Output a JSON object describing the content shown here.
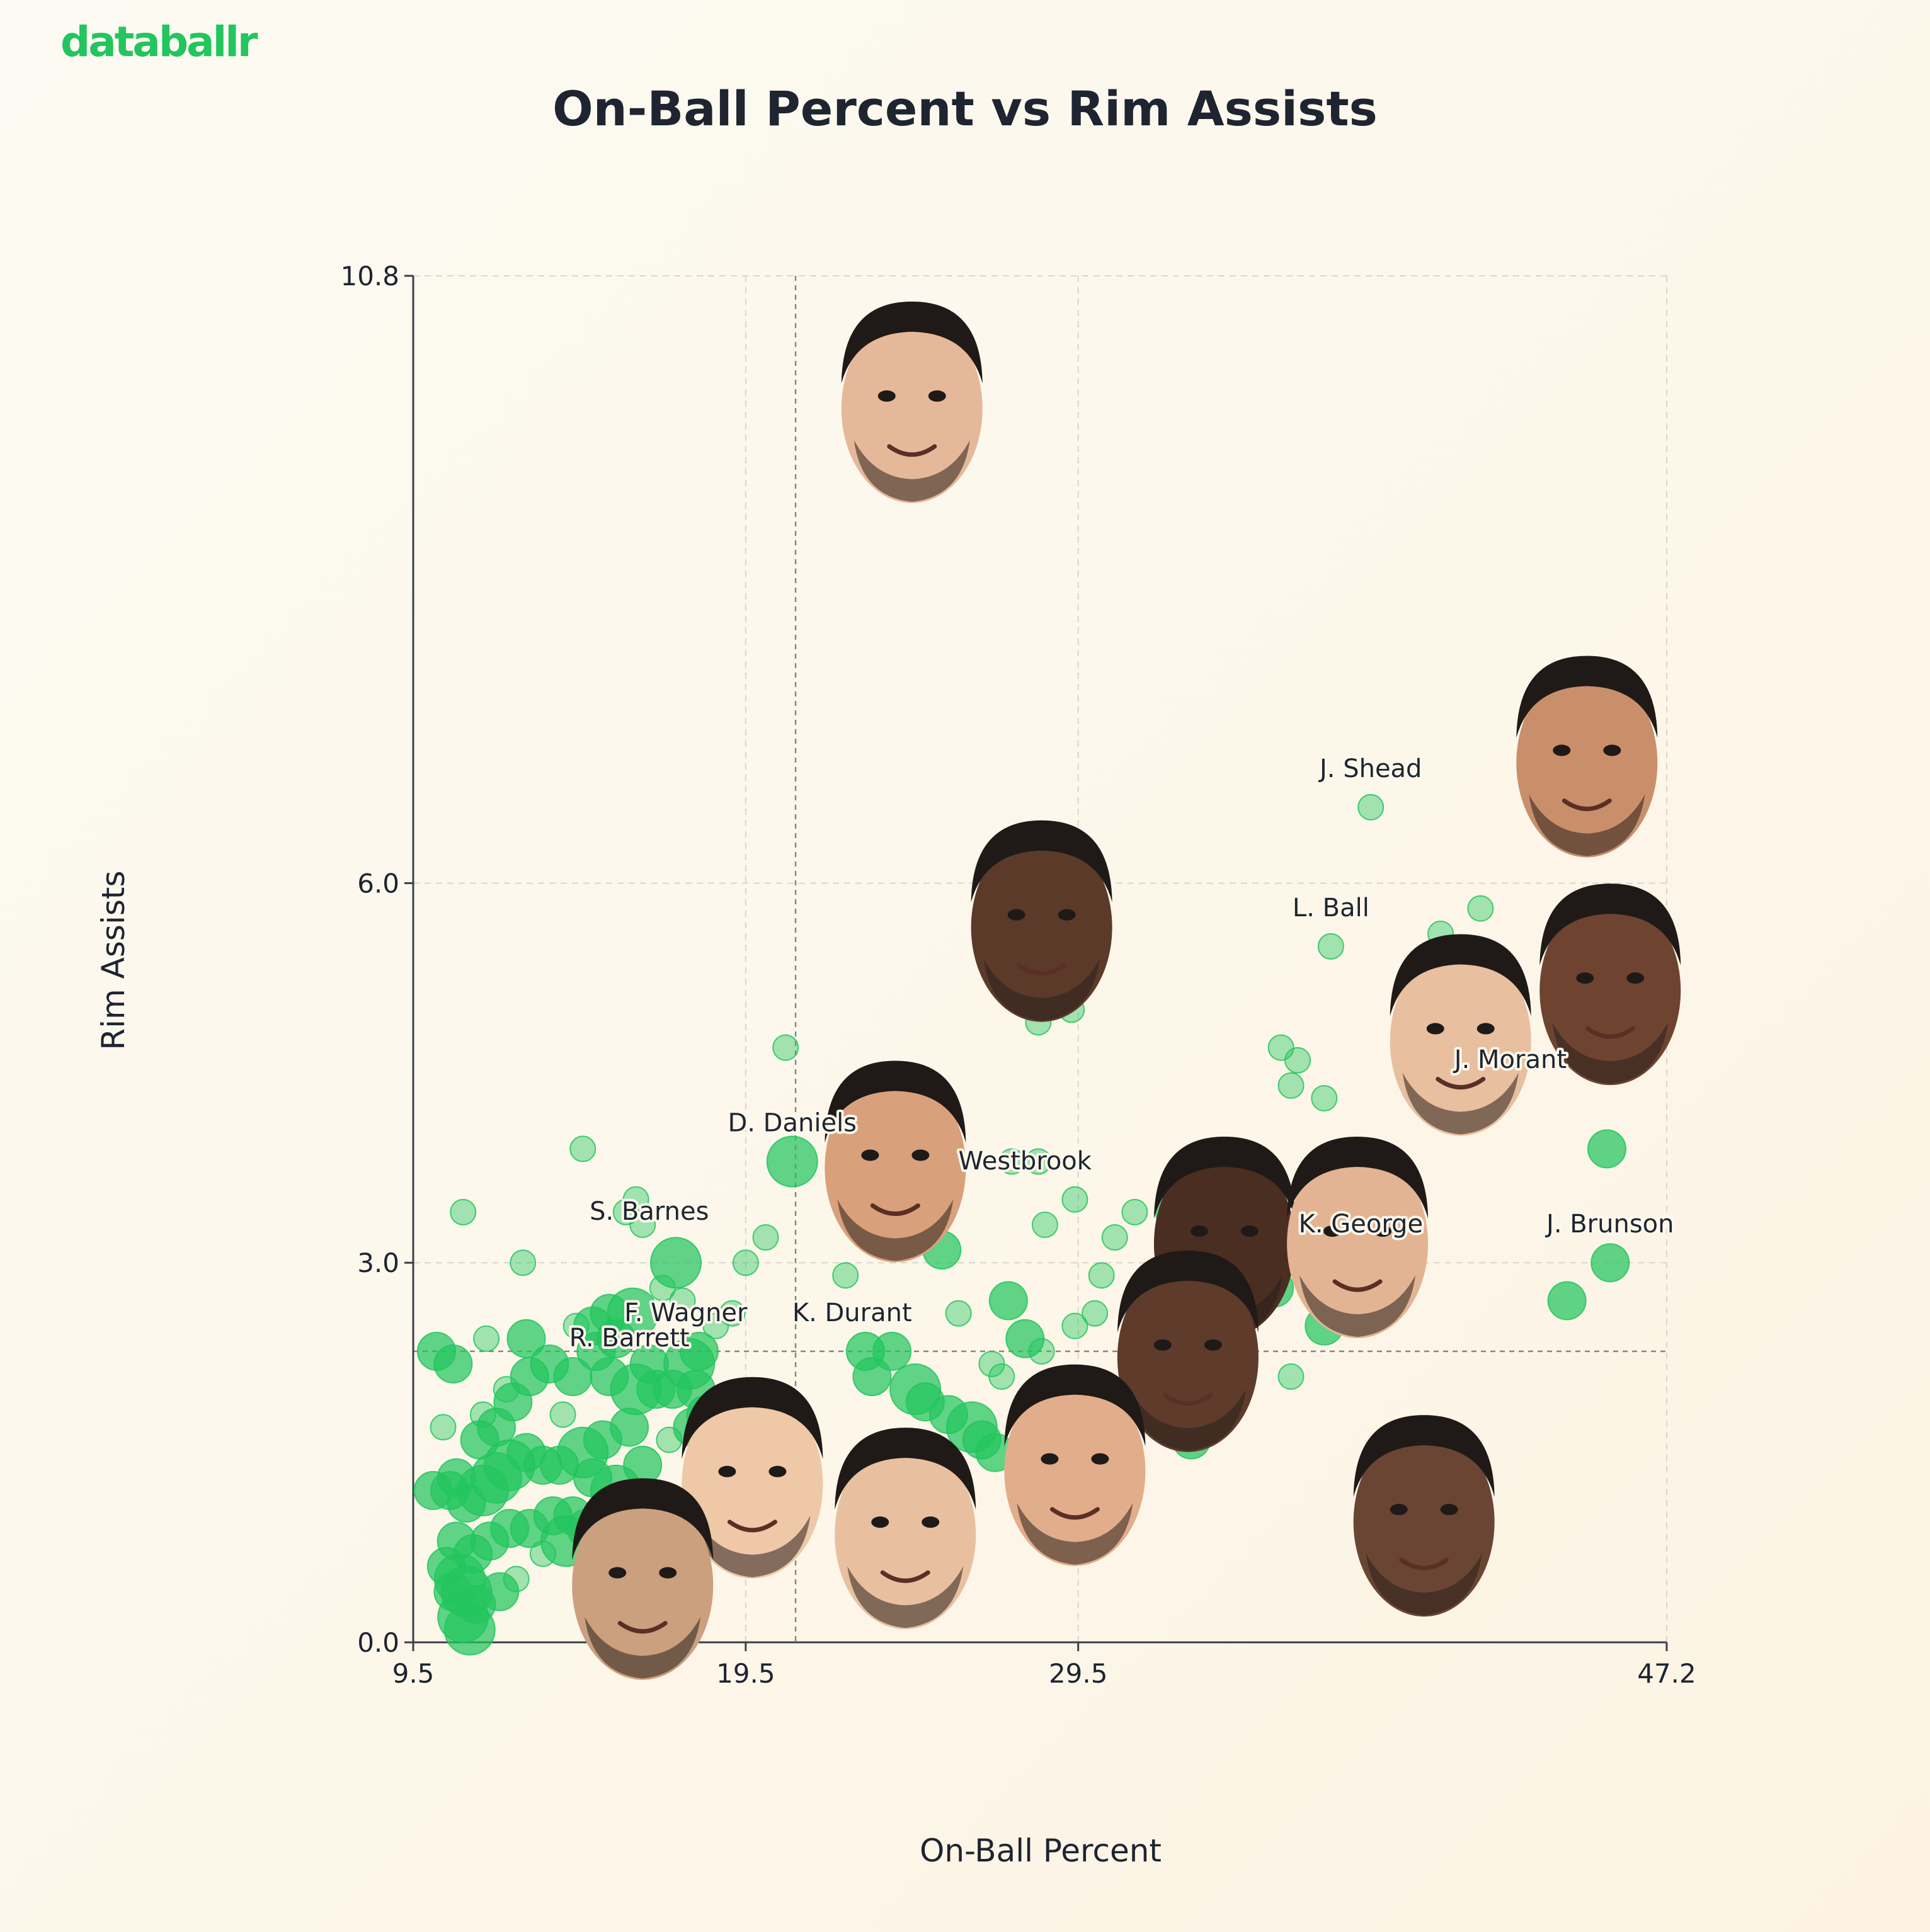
{
  "brand": {
    "logo_text": "databallr",
    "color": "#22c55e"
  },
  "chart_data": {
    "type": "scatter",
    "title": "On-Ball Percent vs Rim Assists",
    "xlabel": "On-Ball Percent",
    "ylabel": "Rim Assists",
    "xlim": [
      9.5,
      47.2
    ],
    "ylim": [
      0.0,
      10.8
    ],
    "x_ticks": [
      9.5,
      19.5,
      29.5,
      47.2
    ],
    "y_ticks": [
      0.0,
      3.0,
      6.0,
      10.8
    ],
    "grid": true,
    "reference_lines": {
      "x": 21.0,
      "y": 2.3
    },
    "point_color": "#22c55e",
    "highlighted_players": [
      {
        "label": "",
        "x": 24.5,
        "y": 9.8,
        "face": "headshot"
      },
      {
        "label": "",
        "x": 28.4,
        "y": 5.7,
        "face": "headshot"
      },
      {
        "label": "",
        "x": 44.8,
        "y": 7.0,
        "face": "headshot"
      },
      {
        "label": "",
        "x": 45.5,
        "y": 5.2,
        "face": "headshot"
      },
      {
        "label": "",
        "x": 41.0,
        "y": 4.8,
        "face": "headshot"
      },
      {
        "label": "",
        "x": 33.9,
        "y": 3.2,
        "face": "headshot"
      },
      {
        "label": "",
        "x": 37.9,
        "y": 3.2,
        "face": "headshot"
      },
      {
        "label": "",
        "x": 24.0,
        "y": 3.8,
        "face": "headshot"
      },
      {
        "label": "",
        "x": 32.8,
        "y": 2.3,
        "face": "headshot"
      },
      {
        "label": "",
        "x": 29.4,
        "y": 1.4,
        "face": "headshot"
      },
      {
        "label": "",
        "x": 39.9,
        "y": 1.0,
        "face": "headshot"
      },
      {
        "label": "",
        "x": 19.7,
        "y": 1.3,
        "face": "headshot"
      },
      {
        "label": "",
        "x": 24.3,
        "y": 0.9,
        "face": "headshot"
      },
      {
        "label": "",
        "x": 16.4,
        "y": 0.5,
        "face": "headshot"
      }
    ],
    "labeled_points": [
      {
        "label": "J. Shead",
        "x": 38.3,
        "y": 6.6
      },
      {
        "label": "L. Ball",
        "x": 37.1,
        "y": 5.5
      },
      {
        "label": "J. Morant",
        "x": 42.5,
        "y": 4.3
      },
      {
        "label": "J. Brunson",
        "x": 45.5,
        "y": 3.0
      },
      {
        "label": "K. George",
        "x": 38.0,
        "y": 3.0
      },
      {
        "label": "Westbrook",
        "x": 27.9,
        "y": 3.5
      },
      {
        "label": "D. Daniels",
        "x": 20.9,
        "y": 3.8
      },
      {
        "label": "S. Barnes",
        "x": 16.6,
        "y": 3.1
      },
      {
        "label": "F. Wagner",
        "x": 17.7,
        "y": 2.3
      },
      {
        "label": "R. Barrett",
        "x": 16.0,
        "y": 2.1
      },
      {
        "label": "K. Durant",
        "x": 22.7,
        "y": 2.3
      }
    ],
    "points": [
      [
        38.3,
        6.6,
        1
      ],
      [
        37.1,
        5.5,
        1
      ],
      [
        41.6,
        5.8,
        1
      ],
      [
        40.4,
        5.6,
        1
      ],
      [
        28.3,
        4.9,
        1
      ],
      [
        29.3,
        5.0,
        1
      ],
      [
        20.7,
        4.7,
        1
      ],
      [
        35.6,
        4.7,
        1
      ],
      [
        36.1,
        4.6,
        1
      ],
      [
        35.9,
        4.4,
        1
      ],
      [
        36.9,
        4.3,
        1
      ],
      [
        45.4,
        3.9,
        2
      ],
      [
        20.9,
        3.8,
        3
      ],
      [
        14.6,
        3.9,
        1
      ],
      [
        27.5,
        3.8,
        1
      ],
      [
        28.3,
        3.8,
        1
      ],
      [
        28.5,
        3.3,
        1
      ],
      [
        29.4,
        3.5,
        1
      ],
      [
        32.4,
        3.4,
        2
      ],
      [
        33.5,
        3.2,
        1
      ],
      [
        38.3,
        3.3,
        2
      ],
      [
        37.9,
        3.0,
        2
      ],
      [
        45.5,
        3.0,
        2
      ],
      [
        44.2,
        2.7,
        2
      ],
      [
        36.9,
        2.5,
        2
      ],
      [
        35.4,
        2.8,
        2
      ],
      [
        35.9,
        2.1,
        1
      ],
      [
        32.9,
        1.6,
        2
      ],
      [
        31.2,
        3.4,
        1
      ],
      [
        30.6,
        3.2,
        1
      ],
      [
        30.2,
        2.9,
        1
      ],
      [
        30.0,
        2.6,
        1
      ],
      [
        29.4,
        2.5,
        1
      ],
      [
        28.4,
        2.3,
        1
      ],
      [
        27.4,
        2.7,
        2
      ],
      [
        27.9,
        2.4,
        2
      ],
      [
        25.4,
        3.1,
        2
      ],
      [
        24.9,
        3.3,
        2
      ],
      [
        22.5,
        2.9,
        1
      ],
      [
        23.1,
        2.3,
        2
      ],
      [
        23.9,
        2.3,
        2
      ],
      [
        23.3,
        2.1,
        2
      ],
      [
        24.6,
        2.0,
        3
      ],
      [
        24.9,
        1.9,
        2
      ],
      [
        25.6,
        1.8,
        2
      ],
      [
        26.3,
        1.7,
        3
      ],
      [
        26.6,
        1.6,
        2
      ],
      [
        27.0,
        1.5,
        2
      ],
      [
        27.2,
        2.1,
        1
      ],
      [
        26.9,
        2.2,
        1
      ],
      [
        25.9,
        2.6,
        1
      ],
      [
        20.1,
        3.2,
        1
      ],
      [
        19.5,
        3.0,
        1
      ],
      [
        16.4,
        3.3,
        1
      ],
      [
        11.0,
        3.4,
        1
      ],
      [
        12.8,
        3.0,
        1
      ],
      [
        17.4,
        3.0,
        3
      ],
      [
        15.9,
        3.4,
        1
      ],
      [
        16.2,
        3.5,
        1
      ],
      [
        14.4,
        2.5,
        1
      ],
      [
        14.9,
        2.5,
        2
      ],
      [
        15.4,
        2.6,
        2
      ],
      [
        16.1,
        2.6,
        3
      ],
      [
        15.6,
        2.4,
        2
      ],
      [
        16.6,
        2.2,
        2
      ],
      [
        17.3,
        2.0,
        2
      ],
      [
        17.8,
        2.2,
        3
      ],
      [
        18.1,
        2.3,
        2
      ],
      [
        18.6,
        2.5,
        1
      ],
      [
        17.6,
        2.7,
        1
      ],
      [
        17.0,
        2.8,
        1
      ],
      [
        19.1,
        2.6,
        1
      ],
      [
        18.0,
        2.0,
        2
      ],
      [
        18.3,
        1.8,
        2
      ],
      [
        15.0,
        2.3,
        2
      ],
      [
        14.3,
        2.1,
        2
      ],
      [
        15.4,
        2.1,
        2
      ],
      [
        16.2,
        2.0,
        3
      ],
      [
        16.8,
        2.0,
        2
      ],
      [
        16.0,
        1.7,
        2
      ],
      [
        15.2,
        1.6,
        2
      ],
      [
        14.6,
        1.5,
        3
      ],
      [
        13.9,
        1.4,
        2
      ],
      [
        13.4,
        1.4,
        2
      ],
      [
        12.9,
        1.5,
        2
      ],
      [
        12.4,
        1.4,
        3
      ],
      [
        12.0,
        1.3,
        3
      ],
      [
        11.6,
        1.2,
        3
      ],
      [
        11.1,
        1.1,
        2
      ],
      [
        10.6,
        1.2,
        2
      ],
      [
        10.1,
        1.2,
        2
      ],
      [
        10.8,
        1.3,
        2
      ],
      [
        11.5,
        1.6,
        2
      ],
      [
        12.0,
        1.7,
        2
      ],
      [
        12.5,
        1.9,
        2
      ],
      [
        13.0,
        2.1,
        2
      ],
      [
        13.6,
        2.2,
        2
      ],
      [
        14.0,
        1.8,
        1
      ],
      [
        15.6,
        1.2,
        3
      ],
      [
        14.9,
        1.3,
        2
      ],
      [
        14.3,
        1.0,
        2
      ],
      [
        13.7,
        1.0,
        2
      ],
      [
        13.0,
        0.9,
        2
      ],
      [
        12.4,
        0.9,
        2
      ],
      [
        11.8,
        0.8,
        2
      ],
      [
        11.3,
        0.7,
        2
      ],
      [
        10.8,
        0.8,
        2
      ],
      [
        10.5,
        0.6,
        2
      ],
      [
        10.9,
        0.5,
        3
      ],
      [
        11.1,
        0.4,
        3
      ],
      [
        11.4,
        0.3,
        2
      ],
      [
        10.7,
        0.4,
        2
      ],
      [
        11.0,
        0.2,
        3
      ],
      [
        11.2,
        0.1,
        3
      ],
      [
        12.1,
        0.4,
        2
      ],
      [
        12.6,
        0.5,
        1
      ],
      [
        13.4,
        0.7,
        1
      ],
      [
        14.1,
        0.8,
        3
      ],
      [
        14.7,
        0.9,
        2
      ],
      [
        15.3,
        0.4,
        1
      ],
      [
        10.2,
        2.3,
        2
      ],
      [
        10.7,
        2.2,
        2
      ],
      [
        11.7,
        2.4,
        1
      ],
      [
        12.9,
        2.4,
        2
      ],
      [
        17.9,
        1.7,
        2
      ],
      [
        17.2,
        1.6,
        1
      ],
      [
        16.4,
        1.4,
        2
      ],
      [
        11.6,
        1.8,
        1
      ],
      [
        12.3,
        2.0,
        1
      ],
      [
        10.4,
        1.7,
        1
      ]
    ]
  }
}
